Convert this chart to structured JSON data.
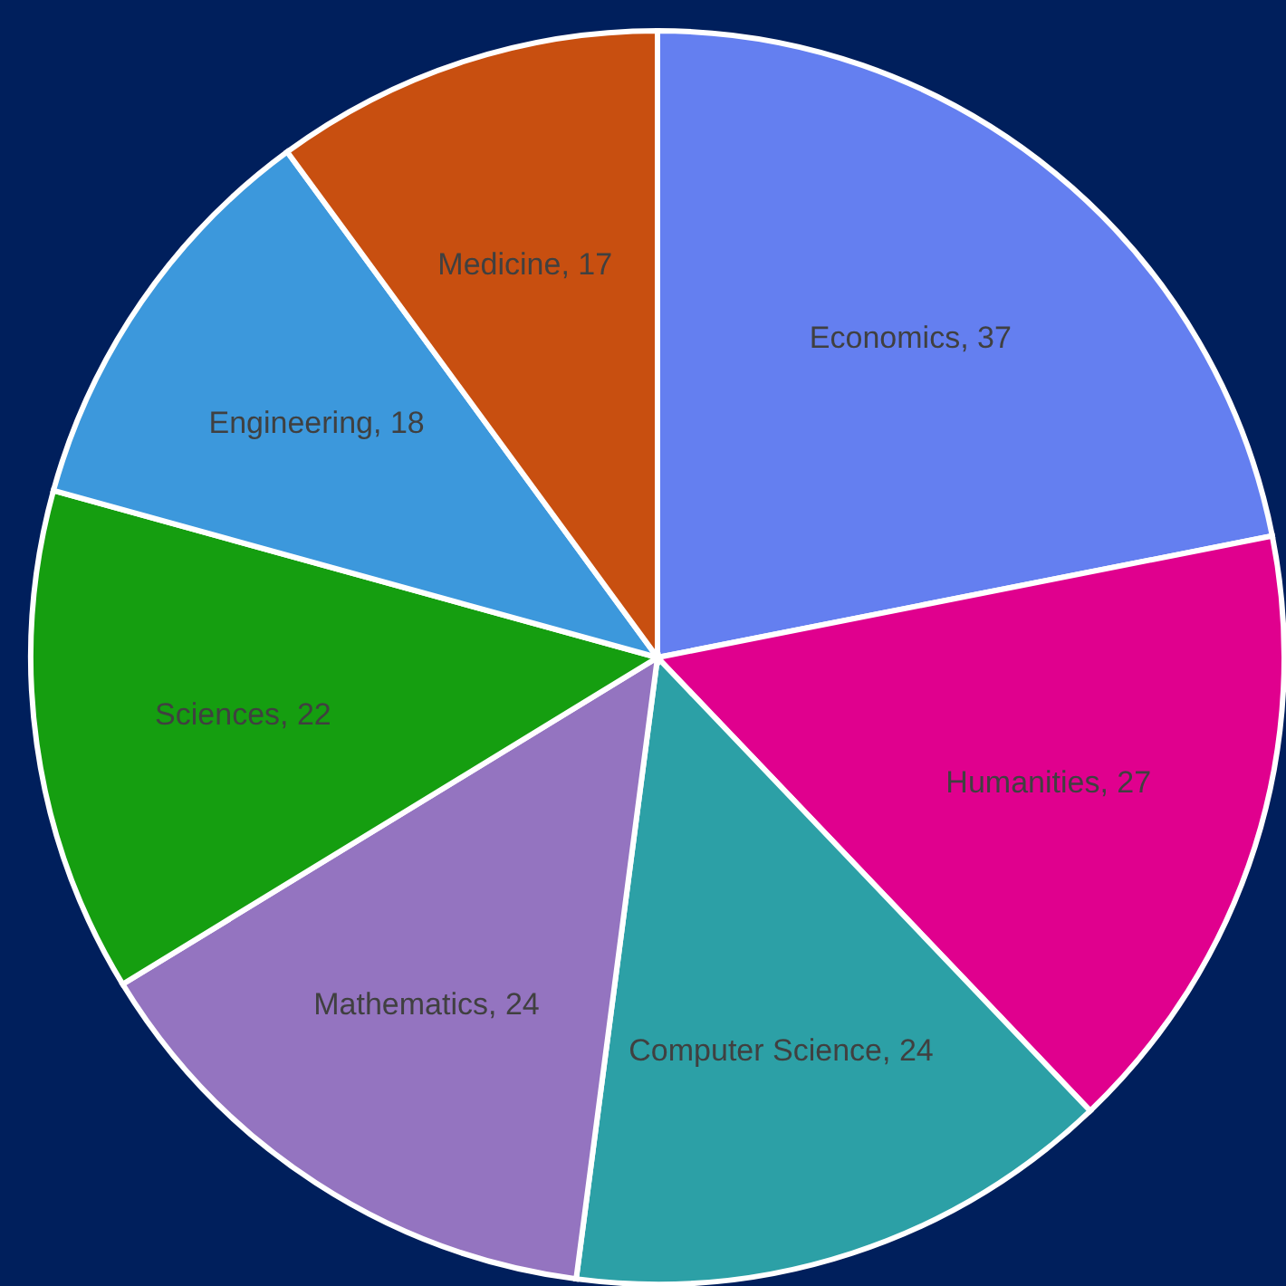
{
  "chart_data": {
    "type": "pie",
    "categories": [
      "Economics",
      "Humanities",
      "Computer Science",
      "Mathematics",
      "Sciences",
      "Engineering",
      "Medicine"
    ],
    "values": [
      37,
      27,
      24,
      24,
      22,
      18,
      17
    ],
    "value_labels": [
      ", 37",
      ", 27",
      ", 24",
      ", 24",
      ", 22",
      ", 18",
      ", 17"
    ],
    "colors": [
      "#647ff0",
      "#e0008e",
      "#2ca0a6",
      "#9474c0",
      "#159e10",
      "#3c98dc",
      "#c84f10"
    ]
  }
}
